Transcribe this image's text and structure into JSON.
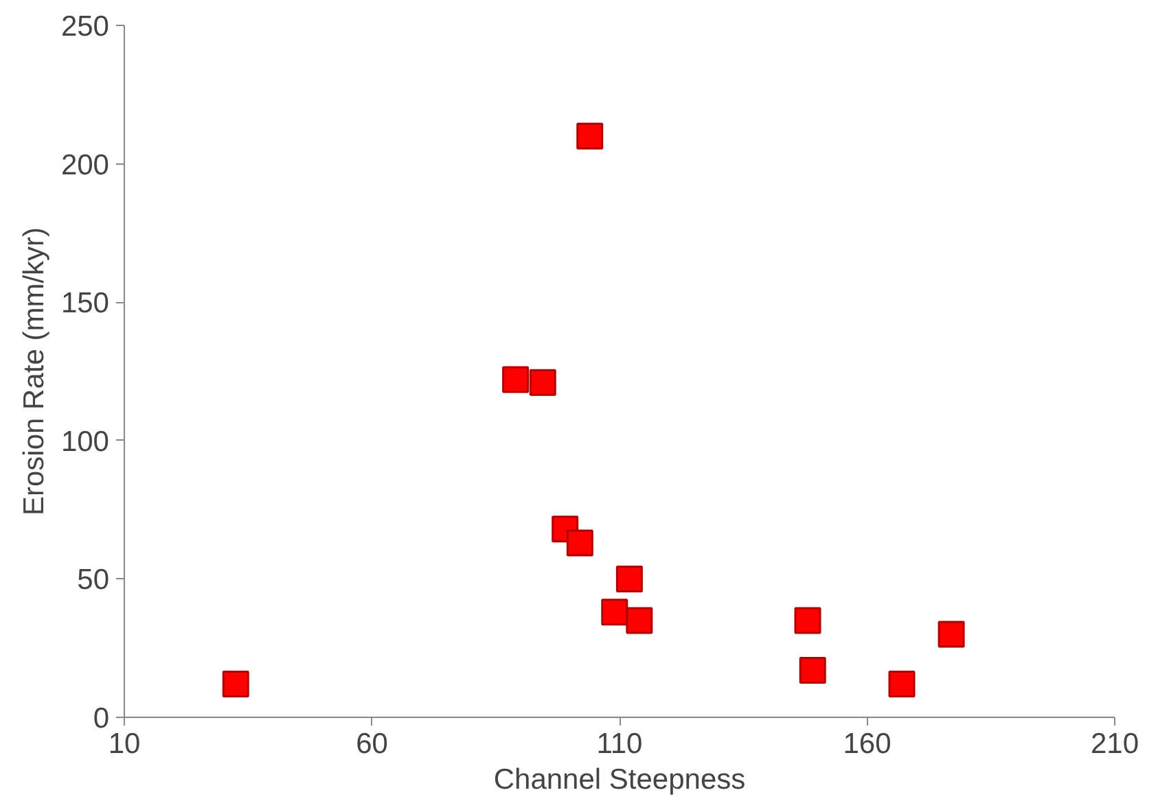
{
  "chart_data": {
    "type": "scatter",
    "xlabel": "Channel Steepness",
    "ylabel": "Erosion Rate (mm/kyr)",
    "x": [
      32.5,
      89,
      94.5,
      104,
      99,
      102,
      112,
      109,
      114,
      148,
      149,
      167,
      177
    ],
    "values": [
      12,
      122,
      121,
      210,
      68,
      63,
      50,
      38,
      35,
      35,
      17,
      12,
      30
    ],
    "color": "#ff0000",
    "marker": "square",
    "grid": false,
    "xlim": [
      10,
      210
    ],
    "xticks": [
      10,
      60,
      110,
      160,
      210
    ],
    "ylim": [
      0,
      250
    ],
    "yticks": [
      0,
      50,
      100,
      150,
      200,
      250
    ]
  }
}
